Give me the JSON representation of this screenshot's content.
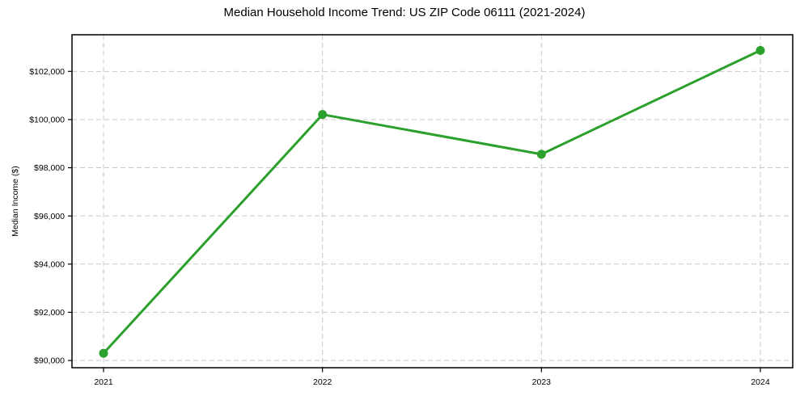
{
  "chart_data": {
    "type": "line",
    "title": "Median Household Income Trend: US ZIP Code 06111 (2021-2024)",
    "xlabel": "",
    "ylabel": "Median Income ($)",
    "categories": [
      "2021",
      "2022",
      "2023",
      "2024"
    ],
    "series": [
      {
        "name": "Median Household Income",
        "values": [
          90300,
          100210,
          98560,
          102870
        ]
      }
    ],
    "yticks": [
      90000,
      92000,
      94000,
      96000,
      98000,
      100000,
      102000
    ],
    "ytick_labels": [
      "$90,000",
      "$92,000",
      "$94,000",
      "$96,000",
      "$98,000",
      "$100,000",
      "$102,000"
    ],
    "ylim": [
      89700,
      103520
    ],
    "grid": true,
    "legend": "none",
    "colors": {
      "line": "#2ca02c",
      "marker": "#2ca02c",
      "grid": "#c8c8c8",
      "spine": "#000000",
      "text": "#000000",
      "background": "#ffffff"
    }
  }
}
